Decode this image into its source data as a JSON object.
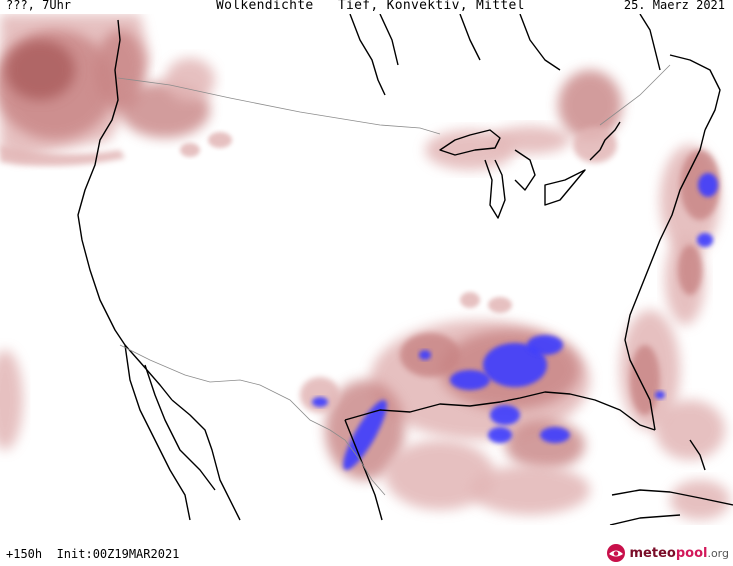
{
  "header": {
    "left": "???, 7Uhr",
    "title": "Wolkendichte   Tief, Konvektiv, Mittel",
    "date": "25. Maerz 2021"
  },
  "footer": {
    "run": "+150h  Init:00Z19MAR2021",
    "logo": {
      "part1": "meteo",
      "part2": "pool",
      "part3": ".org"
    }
  },
  "colors": {
    "cloud_light": "#e2b6b6",
    "cloud_mid": "#c88484",
    "cloud_dark": "#a55454",
    "convective": "#3c3cff",
    "coast": "#000000",
    "border": "#8c8c8c"
  },
  "icons": {
    "logo_mark": "meteopool-logo-icon"
  }
}
